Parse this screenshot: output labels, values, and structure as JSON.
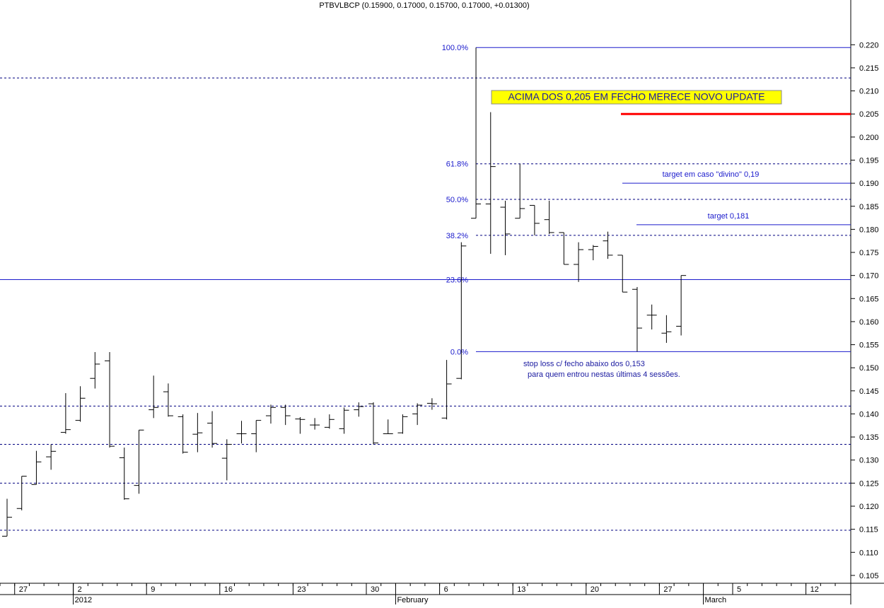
{
  "chart_data": {
    "type": "ohlc",
    "title": "PTBVLBCP (0.15900, 0.17000, 0.15700, 0.17000, +0.01300)",
    "categories": [
      null,
      "27",
      null,
      null,
      null,
      "2",
      null,
      null,
      null,
      null,
      "9",
      null,
      null,
      null,
      null,
      "16",
      null,
      null,
      null,
      null,
      "23",
      null,
      null,
      null,
      null,
      "30",
      null,
      null,
      null,
      null,
      "6",
      null,
      null,
      null,
      null,
      "13",
      null,
      null,
      null,
      null,
      "20",
      null,
      null,
      null,
      null,
      "27",
      null,
      null,
      null,
      null,
      "5",
      null,
      null,
      null,
      null,
      "12",
      null,
      null
    ],
    "months": [
      null,
      null,
      null,
      null,
      null,
      "2012",
      null,
      null,
      null,
      null,
      null,
      null,
      null,
      null,
      null,
      null,
      null,
      null,
      null,
      null,
      null,
      null,
      null,
      null,
      null,
      null,
      null,
      "February",
      null,
      null,
      null,
      null,
      null,
      null,
      null,
      null,
      null,
      null,
      null,
      null,
      null,
      null,
      null,
      null,
      null,
      null,
      null,
      null,
      "March",
      null,
      null,
      null,
      null,
      null,
      null,
      null,
      null,
      null
    ],
    "open": [
      0.1135,
      0.1195,
      0.1247,
      0.1307,
      0.136,
      0.1386,
      0.1477,
      0.1515,
      0.1305,
      0.1245,
      0.1409,
      0.1448,
      0.1394,
      0.1356,
      0.138,
      0.1304,
      0.1357,
      0.1357,
      0.1396,
      0.1414,
      0.1389,
      0.1376,
      0.1371,
      0.1368,
      0.1409,
      0.1422,
      0.1357,
      0.1359,
      0.14,
      0.1423,
      0.1391,
      0.1477,
      0.1824,
      0.1855,
      0.1848,
      0.1824,
      0.1852,
      0.1821,
      0.1793,
      0.1724,
      0.1756,
      0.1775,
      0.1744,
      0.167,
      0.1614,
      0.1575,
      0.159,
      null,
      null,
      null,
      null,
      null,
      null,
      null,
      null,
      null,
      null,
      null
    ],
    "high": [
      0.1216,
      0.1265,
      0.132,
      0.1334,
      0.1445,
      0.146,
      0.1534,
      0.1534,
      0.1327,
      0.1365,
      0.1483,
      0.1466,
      0.1399,
      0.1402,
      0.1406,
      0.1345,
      0.1385,
      0.1386,
      0.142,
      0.142,
      0.1393,
      0.1391,
      0.1399,
      0.1414,
      0.1425,
      0.1425,
      0.1388,
      0.1399,
      0.1423,
      0.1434,
      0.1517,
      0.1772,
      0.2194,
      0.2054,
      0.1862,
      0.1942,
      0.1852,
      0.1862,
      0.1793,
      0.1772,
      0.1766,
      0.1795,
      0.1744,
      0.1675,
      0.1637,
      0.1614,
      0.17,
      null,
      null,
      null,
      null,
      null,
      null,
      null,
      null,
      null,
      null,
      null
    ],
    "low": [
      0.1135,
      0.1191,
      0.1247,
      0.1279,
      0.1357,
      0.1383,
      0.1455,
      0.1327,
      0.1214,
      0.1227,
      0.1391,
      0.1394,
      0.1314,
      0.1317,
      0.1327,
      0.1256,
      0.1336,
      0.1317,
      0.1379,
      0.1376,
      0.1357,
      0.1366,
      0.1368,
      0.1357,
      0.1394,
      0.1334,
      0.1357,
      0.1357,
      0.1376,
      0.1409,
      0.1388,
      0.1475,
      0.1824,
      0.1747,
      0.1744,
      0.1824,
      0.1787,
      0.179,
      0.1724,
      0.1686,
      0.1733,
      0.1736,
      0.1664,
      0.1535,
      0.1583,
      0.1554,
      0.157,
      null,
      null,
      null,
      null,
      null,
      null,
      null,
      null,
      null,
      null,
      null
    ],
    "close": [
      0.1176,
      0.1265,
      0.1296,
      0.1319,
      0.1366,
      0.1434,
      0.1508,
      0.133,
      0.1216,
      0.1365,
      0.1414,
      0.1396,
      0.1317,
      0.1359,
      0.1336,
      0.1334,
      0.1357,
      0.1386,
      0.1414,
      0.1396,
      0.1388,
      0.1376,
      0.1388,
      0.1408,
      0.1416,
      0.1337,
      0.1357,
      0.1394,
      0.1419,
      0.1422,
      0.1465,
      0.1764,
      0.1855,
      0.1936,
      0.179,
      0.1845,
      0.1813,
      0.1793,
      0.1724,
      0.1756,
      0.1763,
      0.1744,
      0.1664,
      0.1586,
      0.1614,
      0.1578,
      0.17,
      null,
      null,
      null,
      null,
      null,
      null,
      null,
      null,
      null,
      null,
      null
    ],
    "color": "#000000",
    "ylim": [
      0.1033,
      0.2297
    ],
    "yticks": [
      0.105,
      {
        "value": 0.11,
        "label": "0.110"
      },
      0.115,
      {
        "value": 0.12,
        "label": "0.120"
      },
      0.125,
      {
        "value": 0.13,
        "label": "0.130"
      },
      0.135,
      {
        "value": 0.14,
        "label": "0.140"
      },
      0.145,
      {
        "value": 0.15,
        "label": "0.150"
      },
      0.155,
      {
        "value": 0.16,
        "label": "0.160"
      },
      0.165,
      {
        "value": 0.17,
        "label": "0.170"
      },
      0.175,
      {
        "value": 0.18,
        "label": "0.180"
      },
      0.185,
      {
        "value": 0.19,
        "label": "0.190"
      },
      0.195,
      {
        "value": 0.2,
        "label": "0.200"
      },
      0.205,
      {
        "value": 0.21,
        "label": "0.210"
      },
      0.215,
      {
        "value": 0.22,
        "label": "0.220"
      }
    ],
    "fib": [
      {
        "label": "100.0%",
        "value": 0.2194,
        "style": "solid"
      },
      {
        "label": "61.8%",
        "value": 0.1942,
        "style": "dotted"
      },
      {
        "label": "50.0%",
        "value": 0.1865,
        "style": "dotted"
      },
      {
        "label": "38.2%",
        "value": 0.1787,
        "style": "dotted"
      },
      {
        "label": "23.6%",
        "value": 0.1691,
        "style": "solid",
        "full_width": true
      },
      {
        "label": "0.0%",
        "value": 0.1535,
        "style": "solid"
      }
    ],
    "dotted_levels": [
      0.2128,
      0.1417,
      0.1334,
      0.125,
      0.1148
    ],
    "highlight": {
      "label": "ACIMA DOS 0,205  EM FECHO MERECE NOVO UPDATE",
      "value": 0.205,
      "color": "#ff0000"
    },
    "targets": [
      {
        "label": "target em caso \"divino\" 0,19",
        "value": 0.19
      },
      {
        "label": "target 0,181",
        "value": 0.181
      }
    ],
    "stop_loss_note": [
      "stop loss c/ fecho abaixo dos 0,153",
      "para quem entrou nestas últimas 4 sessões."
    ]
  }
}
